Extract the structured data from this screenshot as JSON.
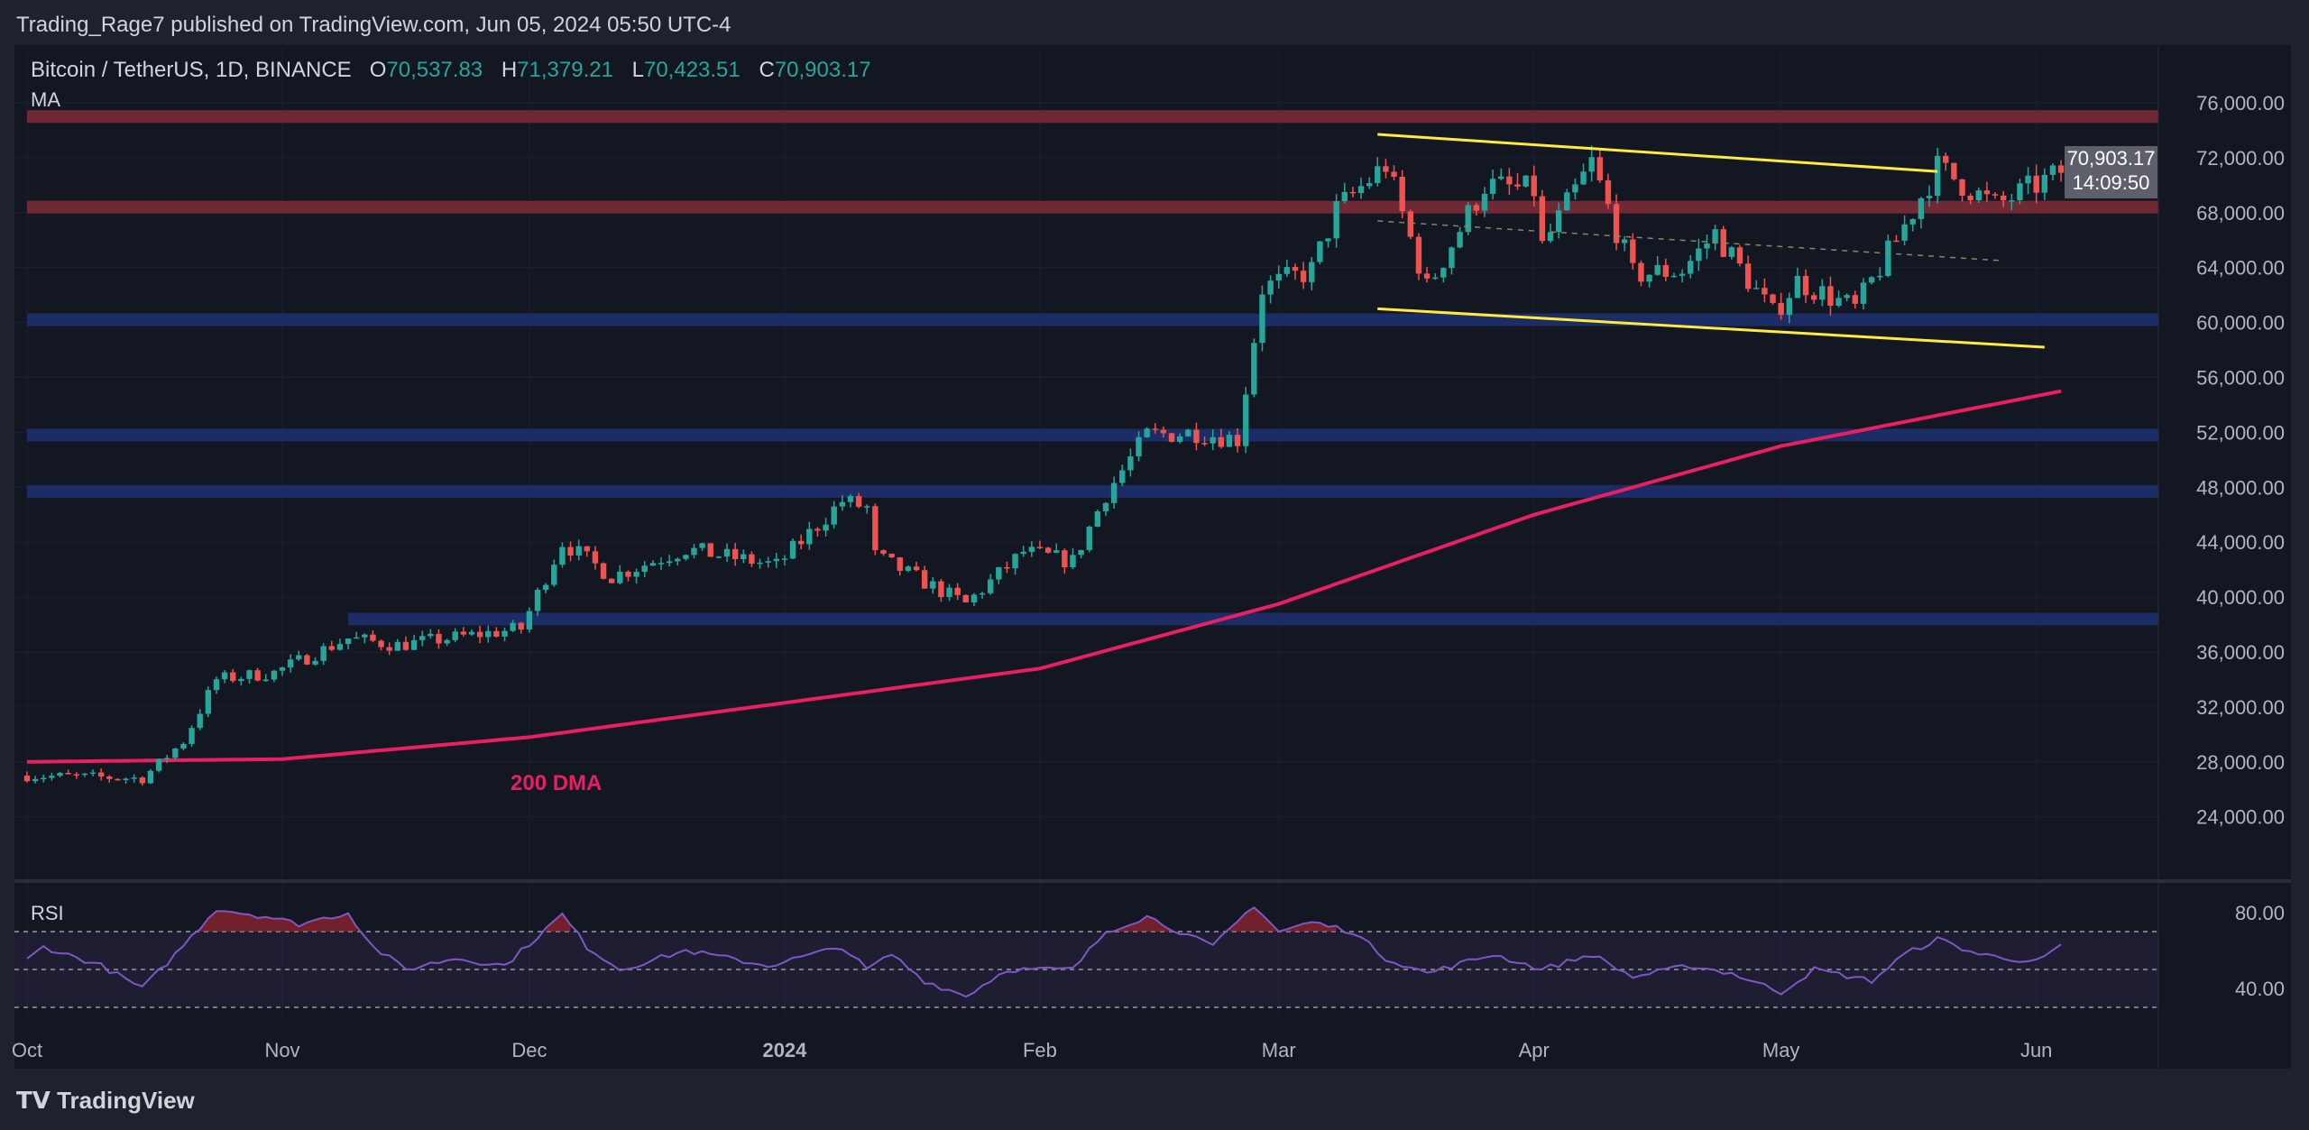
{
  "header": {
    "published": "Trading_Rage7 published on TradingView.com, Jun 05, 2024 05:50 UTC-4"
  },
  "legend": {
    "symbol": "Bitcoin / TetherUS, 1D, BINANCE",
    "o_label": "O",
    "o": "70,537.83",
    "h_label": "H",
    "h": "71,379.21",
    "l_label": "L",
    "l": "70,423.51",
    "c_label": "C",
    "c": "70,903.17",
    "indicator": "MA"
  },
  "last_price": {
    "price": "70,903.17",
    "countdown": "14:09:50"
  },
  "rsi": {
    "label": "RSI"
  },
  "annotation": {
    "dma": "200 DMA"
  },
  "footer": {
    "brand": "TradingView"
  },
  "colors": {
    "background": "#131722",
    "up": "#26a69a",
    "down": "#ef5350",
    "ma": "#e91e63",
    "rsi": "#7e57c2",
    "trendline": "#ffeb3b",
    "resistance": "#7a2a36",
    "support": "#1e2f6b"
  },
  "chart_data": {
    "type": "candlestick",
    "title": "Bitcoin / TetherUS, 1D, BINANCE",
    "ylim": [
      22000,
      78000
    ],
    "yticks": [
      "76,000.00",
      "72,000.00",
      "68,000.00",
      "64,000.00",
      "60,000.00",
      "56,000.00",
      "52,000.00",
      "48,000.00",
      "44,000.00",
      "40,000.00",
      "36,000.00",
      "32,000.00",
      "28,000.00",
      "24,000.00"
    ],
    "ytick_values": [
      76000,
      72000,
      68000,
      64000,
      60000,
      56000,
      52000,
      48000,
      44000,
      40000,
      36000,
      32000,
      28000,
      24000
    ],
    "xticks": [
      {
        "label": "Oct",
        "date": "2023-10-01"
      },
      {
        "label": "Nov",
        "date": "2023-11-01"
      },
      {
        "label": "Dec",
        "date": "2023-12-01"
      },
      {
        "label": "2024",
        "date": "2024-01-01"
      },
      {
        "label": "Feb",
        "date": "2024-02-01"
      },
      {
        "label": "Mar",
        "date": "2024-03-01"
      },
      {
        "label": "Apr",
        "date": "2024-04-01"
      },
      {
        "label": "May",
        "date": "2024-05-01"
      },
      {
        "label": "Jun",
        "date": "2024-06-01"
      }
    ],
    "close_path": [
      [
        "2023-10-01",
        27000
      ],
      [
        "2023-10-15",
        26800
      ],
      [
        "2023-10-20",
        29500
      ],
      [
        "2023-10-24",
        34000
      ],
      [
        "2023-10-31",
        34500
      ],
      [
        "2023-11-09",
        37000
      ],
      [
        "2023-11-15",
        36500
      ],
      [
        "2023-11-30",
        37700
      ],
      [
        "2023-12-05",
        44000
      ],
      [
        "2023-12-11",
        41500
      ],
      [
        "2023-12-20",
        43500
      ],
      [
        "2023-12-31",
        42300
      ],
      [
        "2024-01-08",
        47000
      ],
      [
        "2024-01-11",
        46500
      ],
      [
        "2024-01-12",
        43000
      ],
      [
        "2024-01-23",
        39500
      ],
      [
        "2024-01-30",
        43300
      ],
      [
        "2024-02-05",
        42600
      ],
      [
        "2024-02-09",
        47500
      ],
      [
        "2024-02-14",
        51800
      ],
      [
        "2024-02-20",
        52000
      ],
      [
        "2024-02-25",
        51500
      ],
      [
        "2024-02-28",
        62500
      ],
      [
        "2024-03-05",
        63800
      ],
      [
        "2024-03-08",
        68200
      ],
      [
        "2024-03-14",
        71500
      ],
      [
        "2024-03-19",
        62500
      ],
      [
        "2024-03-26",
        70000
      ],
      [
        "2024-04-01",
        69600
      ],
      [
        "2024-04-02",
        65500
      ],
      [
        "2024-04-08",
        71600
      ],
      [
        "2024-04-13",
        63500
      ],
      [
        "2024-04-19",
        63800
      ],
      [
        "2024-04-23",
        66500
      ],
      [
        "2024-04-30",
        60600
      ],
      [
        "2024-05-03",
        63000
      ],
      [
        "2024-05-10",
        61000
      ],
      [
        "2024-05-15",
        66000
      ],
      [
        "2024-05-20",
        71300
      ],
      [
        "2024-05-27",
        68500
      ],
      [
        "2024-06-04",
        70903
      ]
    ],
    "ma200": {
      "label": "200 DMA",
      "points": [
        [
          "2023-10-01",
          28000
        ],
        [
          "2023-11-01",
          28200
        ],
        [
          "2023-12-01",
          29800
        ],
        [
          "2024-01-01",
          32300
        ],
        [
          "2024-02-01",
          34800
        ],
        [
          "2024-03-01",
          39500
        ],
        [
          "2024-04-01",
          46000
        ],
        [
          "2024-05-01",
          51000
        ],
        [
          "2024-06-04",
          55000
        ]
      ]
    },
    "zones": [
      {
        "kind": "resistance",
        "price": 75000,
        "from": "2023-10-01"
      },
      {
        "kind": "resistance",
        "price": 68400,
        "from": "2023-10-01"
      },
      {
        "kind": "support",
        "price": 60200,
        "from": "2023-10-01"
      },
      {
        "kind": "support",
        "price": 51800,
        "from": "2023-10-01"
      },
      {
        "kind": "support",
        "price": 47700,
        "from": "2023-10-01"
      },
      {
        "kind": "support",
        "price": 38400,
        "from": "2023-11-09"
      }
    ],
    "trendlines": [
      {
        "style": "solid",
        "from": [
          "2024-03-13",
          73700
        ],
        "to": [
          "2024-05-20",
          71000
        ]
      },
      {
        "style": "solid",
        "from": [
          "2024-03-13",
          61000
        ],
        "to": [
          "2024-06-02",
          58200
        ]
      },
      {
        "style": "dashed",
        "from": [
          "2024-03-13",
          67400
        ],
        "to": [
          "2024-05-28",
          64500
        ]
      }
    ],
    "rsi": {
      "ylim": [
        20,
        90
      ],
      "yticks": [
        "80.00",
        "40.00"
      ],
      "ytick_values": [
        80,
        40
      ],
      "bands": [
        70,
        50,
        30
      ],
      "points": [
        [
          "2023-10-01",
          55
        ],
        [
          "2023-10-03",
          62
        ],
        [
          "2023-10-10",
          52
        ],
        [
          "2023-10-15",
          40
        ],
        [
          "2023-10-19",
          58
        ],
        [
          "2023-10-24",
          82
        ],
        [
          "2023-10-30",
          78
        ],
        [
          "2023-11-03",
          74
        ],
        [
          "2023-11-09",
          80
        ],
        [
          "2023-11-12",
          62
        ],
        [
          "2023-11-16",
          50
        ],
        [
          "2023-11-22",
          56
        ],
        [
          "2023-11-28",
          52
        ],
        [
          "2023-12-05",
          79
        ],
        [
          "2023-12-08",
          62
        ],
        [
          "2023-12-12",
          50
        ],
        [
          "2023-12-20",
          60
        ],
        [
          "2023-12-30",
          52
        ],
        [
          "2024-01-08",
          62
        ],
        [
          "2024-01-11",
          50
        ],
        [
          "2024-01-14",
          58
        ],
        [
          "2024-01-18",
          44
        ],
        [
          "2024-01-23",
          36
        ],
        [
          "2024-01-28",
          50
        ],
        [
          "2024-02-05",
          50
        ],
        [
          "2024-02-09",
          70
        ],
        [
          "2024-02-14",
          78
        ],
        [
          "2024-02-22",
          62
        ],
        [
          "2024-02-27",
          84
        ],
        [
          "2024-03-01",
          70
        ],
        [
          "2024-03-05",
          75
        ],
        [
          "2024-03-10",
          70
        ],
        [
          "2024-03-14",
          56
        ],
        [
          "2024-03-19",
          48
        ],
        [
          "2024-03-27",
          58
        ],
        [
          "2024-04-02",
          50
        ],
        [
          "2024-04-08",
          58
        ],
        [
          "2024-04-13",
          46
        ],
        [
          "2024-04-20",
          52
        ],
        [
          "2024-04-25",
          48
        ],
        [
          "2024-05-01",
          38
        ],
        [
          "2024-05-05",
          50
        ],
        [
          "2024-05-12",
          44
        ],
        [
          "2024-05-16",
          58
        ],
        [
          "2024-05-20",
          66
        ],
        [
          "2024-05-25",
          58
        ],
        [
          "2024-06-01",
          54
        ],
        [
          "2024-06-04",
          62
        ]
      ]
    }
  }
}
